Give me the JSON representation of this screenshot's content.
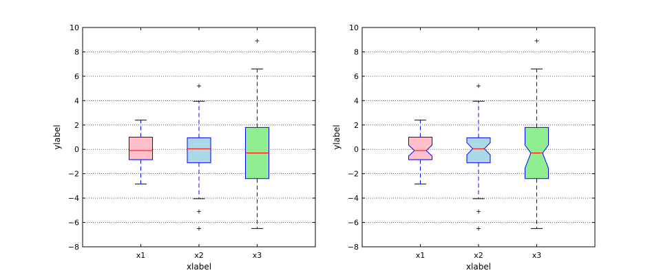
{
  "chart_data": [
    {
      "type": "boxplot",
      "notched": false,
      "xlabel": "xlabel",
      "ylabel": "ylabel",
      "categories": [
        "x1",
        "x2",
        "x3"
      ],
      "ylim": [
        -8,
        10
      ],
      "yticks": [
        -8,
        -6,
        -4,
        -2,
        0,
        2,
        4,
        6,
        8,
        10
      ],
      "ytick_labels": [
        "−8",
        "−6",
        "−4",
        "−2",
        "0",
        "2",
        "4",
        "6",
        "8",
        "10"
      ],
      "grid": "y-dotted",
      "boxes": [
        {
          "name": "x1",
          "whislo": -2.85,
          "q1": -0.85,
          "med": -0.1,
          "q3": 1.0,
          "whishi": 2.4,
          "fliers": [],
          "color": "#ffc0cb"
        },
        {
          "name": "x2",
          "whislo": -4.05,
          "q1": -1.1,
          "med": 0.05,
          "q3": 0.95,
          "whishi": 3.95,
          "fliers": [
            5.2,
            -5.1,
            -6.5
          ],
          "color": "#add8e6"
        },
        {
          "name": "x3",
          "whislo": -6.5,
          "q1": -2.4,
          "med": -0.3,
          "q3": 1.8,
          "whishi": 6.6,
          "fliers": [
            8.9
          ],
          "color": "#90ee90"
        }
      ]
    },
    {
      "type": "boxplot",
      "notched": true,
      "xlabel": "xlabel",
      "ylabel": "ylabel",
      "categories": [
        "x1",
        "x2",
        "x3"
      ],
      "ylim": [
        -8,
        10
      ],
      "yticks": [
        -8,
        -6,
        -4,
        -2,
        0,
        2,
        4,
        6,
        8,
        10
      ],
      "ytick_labels": [
        "−8",
        "−6",
        "−4",
        "−2",
        "0",
        "2",
        "4",
        "6",
        "8",
        "10"
      ],
      "grid": "y-dotted",
      "boxes": [
        {
          "name": "x1",
          "whislo": -2.85,
          "q1": -0.85,
          "med": -0.1,
          "q3": 1.0,
          "whishi": 2.4,
          "notch_lo": -0.55,
          "notch_hi": 0.35,
          "fliers": [],
          "color": "#ffc0cb"
        },
        {
          "name": "x2",
          "whislo": -4.05,
          "q1": -1.1,
          "med": 0.05,
          "q3": 0.95,
          "whishi": 3.95,
          "notch_lo": -0.45,
          "notch_hi": 0.55,
          "fliers": [
            5.2,
            -5.1,
            -6.5
          ],
          "color": "#add8e6"
        },
        {
          "name": "x3",
          "whislo": -6.5,
          "q1": -2.4,
          "med": -0.3,
          "q3": 1.8,
          "whishi": 6.6,
          "notch_lo": -1.55,
          "notch_hi": 0.35,
          "fliers": [
            8.9
          ],
          "color": "#90ee90"
        }
      ]
    }
  ]
}
